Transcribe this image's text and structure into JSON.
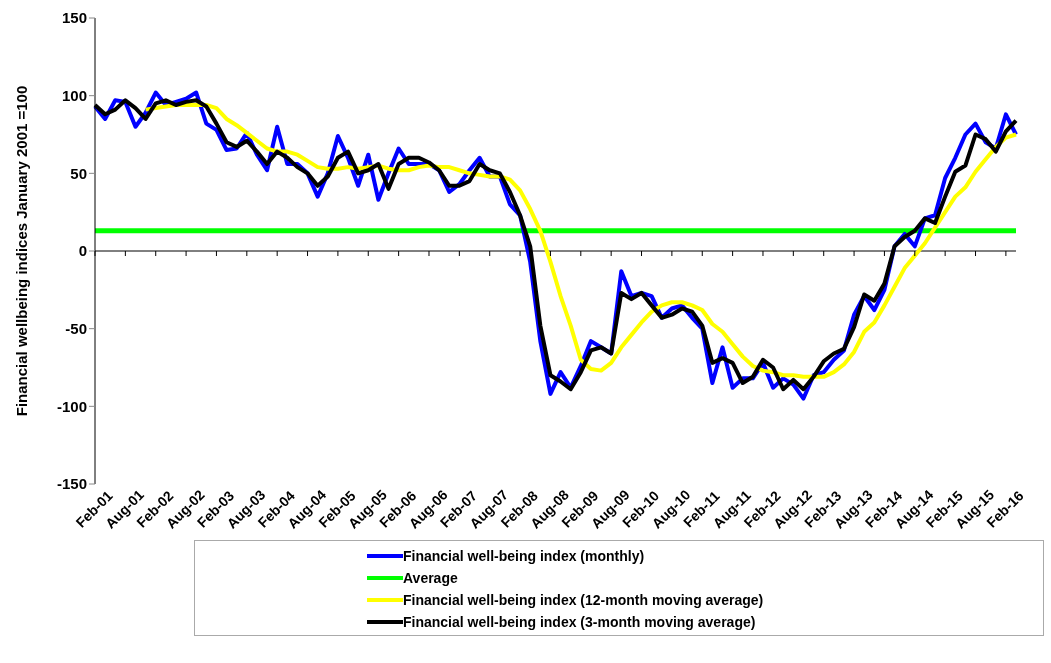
{
  "chart_data": {
    "type": "line",
    "ylabel": "Financial wellbeing indices January 2001 =100",
    "categories": [
      "Feb-01",
      null,
      null,
      "Aug-01",
      null,
      null,
      "Feb-02",
      null,
      null,
      "Aug-02",
      null,
      null,
      "Feb-03",
      null,
      null,
      "Aug-03",
      null,
      null,
      "Feb-04",
      null,
      null,
      "Aug-04",
      null,
      null,
      "Feb-05",
      null,
      null,
      "Aug-05",
      null,
      null,
      "Feb-06",
      null,
      null,
      "Aug-06",
      null,
      null,
      "Feb-07",
      null,
      null,
      "Aug-07",
      null,
      null,
      "Feb-08",
      null,
      null,
      "Aug-08",
      null,
      null,
      "Feb-09",
      null,
      null,
      "Aug-09",
      null,
      null,
      "Feb-10",
      null,
      null,
      "Aug-10",
      null,
      null,
      "Feb-11",
      null,
      null,
      "Aug-11",
      null,
      null,
      "Feb-12",
      null,
      null,
      "Aug-12",
      null,
      null,
      "Feb-13",
      null,
      null,
      "Aug-13",
      null,
      null,
      "Feb-14",
      null,
      null,
      "Aug-14",
      null,
      null,
      "Feb-15",
      null,
      null,
      "Aug-15",
      null,
      null,
      "Feb-16",
      null
    ],
    "series": [
      {
        "name": "Financial well-being index (monthly)",
        "color": "#0000ff",
        "values": [
          93,
          85,
          97,
          96,
          80,
          89,
          102,
          94,
          96,
          98,
          102,
          82,
          78,
          65,
          66,
          76,
          62,
          52,
          80,
          56,
          56,
          50,
          35,
          50,
          74,
          60,
          42,
          62,
          33,
          50,
          66,
          56,
          56,
          56,
          52,
          38,
          43,
          52,
          60,
          48,
          48,
          30,
          23,
          -7,
          -58,
          -92,
          -78,
          -88,
          -74,
          -58,
          -62,
          -66,
          -13,
          -29,
          -27,
          -29,
          -43,
          -37,
          -35,
          -43,
          -50,
          -85,
          -62,
          -88,
          -82,
          -82,
          -72,
          -88,
          -82,
          -86,
          -95,
          -80,
          -78,
          -70,
          -64,
          -41,
          -29,
          -38,
          -25,
          3,
          11,
          3,
          21,
          23,
          47,
          60,
          75,
          82,
          70,
          66,
          88,
          75
        ]
      },
      {
        "name": "Financial well-being index (12-month moving average)",
        "color": "#ffff00",
        "values": [
          null,
          null,
          null,
          null,
          null,
          91,
          92,
          93,
          94,
          94,
          94,
          94,
          92,
          85,
          81,
          76,
          71,
          66,
          64,
          64,
          62,
          58,
          54,
          53,
          53,
          54,
          53,
          54,
          55,
          53,
          52,
          52,
          54,
          55,
          54,
          54,
          52,
          50,
          49,
          48,
          48,
          46,
          39,
          27,
          13,
          -7,
          -29,
          -48,
          -70,
          -76,
          -77,
          -72,
          -62,
          -54,
          -46,
          -39,
          -35,
          -33,
          -33,
          -35,
          -38,
          -47,
          -52,
          -60,
          -68,
          -74,
          -77,
          -78,
          -80,
          -80,
          -81,
          -81,
          -81,
          -78,
          -73,
          -65,
          -52,
          -46,
          -35,
          -23,
          -11,
          -3,
          5,
          15,
          25,
          35,
          41,
          51,
          59,
          67,
          73,
          75
        ]
      },
      {
        "name": "Financial well-being index (3-month moving average)",
        "color": "#000000",
        "values": [
          94,
          88,
          91,
          97,
          92,
          85,
          95,
          97,
          94,
          96,
          97,
          93,
          82,
          70,
          67,
          71,
          64,
          56,
          64,
          60,
          54,
          50,
          42,
          48,
          60,
          64,
          50,
          52,
          56,
          40,
          56,
          60,
          60,
          57,
          52,
          42,
          42,
          45,
          56,
          52,
          50,
          38,
          23,
          3,
          -48,
          -80,
          -84,
          -89,
          -78,
          -64,
          -62,
          -66,
          -27,
          -31,
          -27,
          -35,
          -43,
          -41,
          -37,
          -39,
          -48,
          -72,
          -69,
          -72,
          -85,
          -81,
          -70,
          -75,
          -89,
          -83,
          -89,
          -81,
          -71,
          -66,
          -63,
          -49,
          -28,
          -32,
          -21,
          3,
          9,
          13,
          21,
          18,
          35,
          51,
          55,
          75,
          72,
          64,
          77,
          84
        ]
      }
    ],
    "ref_lines": [
      {
        "axis": "y",
        "value": 13,
        "label": "Average",
        "color": "#00ff00"
      }
    ],
    "ylim": [
      -150,
      150
    ],
    "yticks": [
      -150,
      -100,
      -50,
      0,
      50,
      100,
      150
    ],
    "legend": "bottom"
  }
}
